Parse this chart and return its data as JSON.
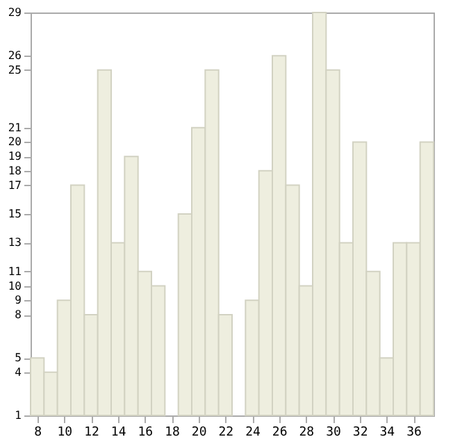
{
  "chart_data": {
    "type": "bar",
    "x": [
      8,
      9,
      10,
      11,
      12,
      13,
      14,
      15,
      16,
      17,
      18,
      19,
      20,
      21,
      22,
      23,
      24,
      25,
      26,
      27,
      28,
      29,
      30,
      31,
      32,
      33,
      34,
      35,
      36,
      37
    ],
    "values": [
      5,
      4,
      9,
      17,
      8,
      25,
      13,
      19,
      11,
      10,
      1,
      15,
      21,
      25,
      8,
      1,
      9,
      18,
      26,
      17,
      10,
      29,
      25,
      13,
      20,
      11,
      5,
      13,
      13,
      20
    ],
    "color": "#eeeedf",
    "xlim": [
      7.5,
      37.5
    ],
    "xticks": [
      8,
      10,
      12,
      14,
      16,
      18,
      20,
      22,
      24,
      26,
      28,
      30,
      32,
      34,
      36
    ],
    "ylim": [
      1,
      29
    ],
    "yticks": [
      1,
      4,
      5,
      8,
      9,
      10,
      11,
      13,
      15,
      17,
      18,
      19,
      20,
      21,
      25,
      26,
      29
    ],
    "grid": false
  }
}
